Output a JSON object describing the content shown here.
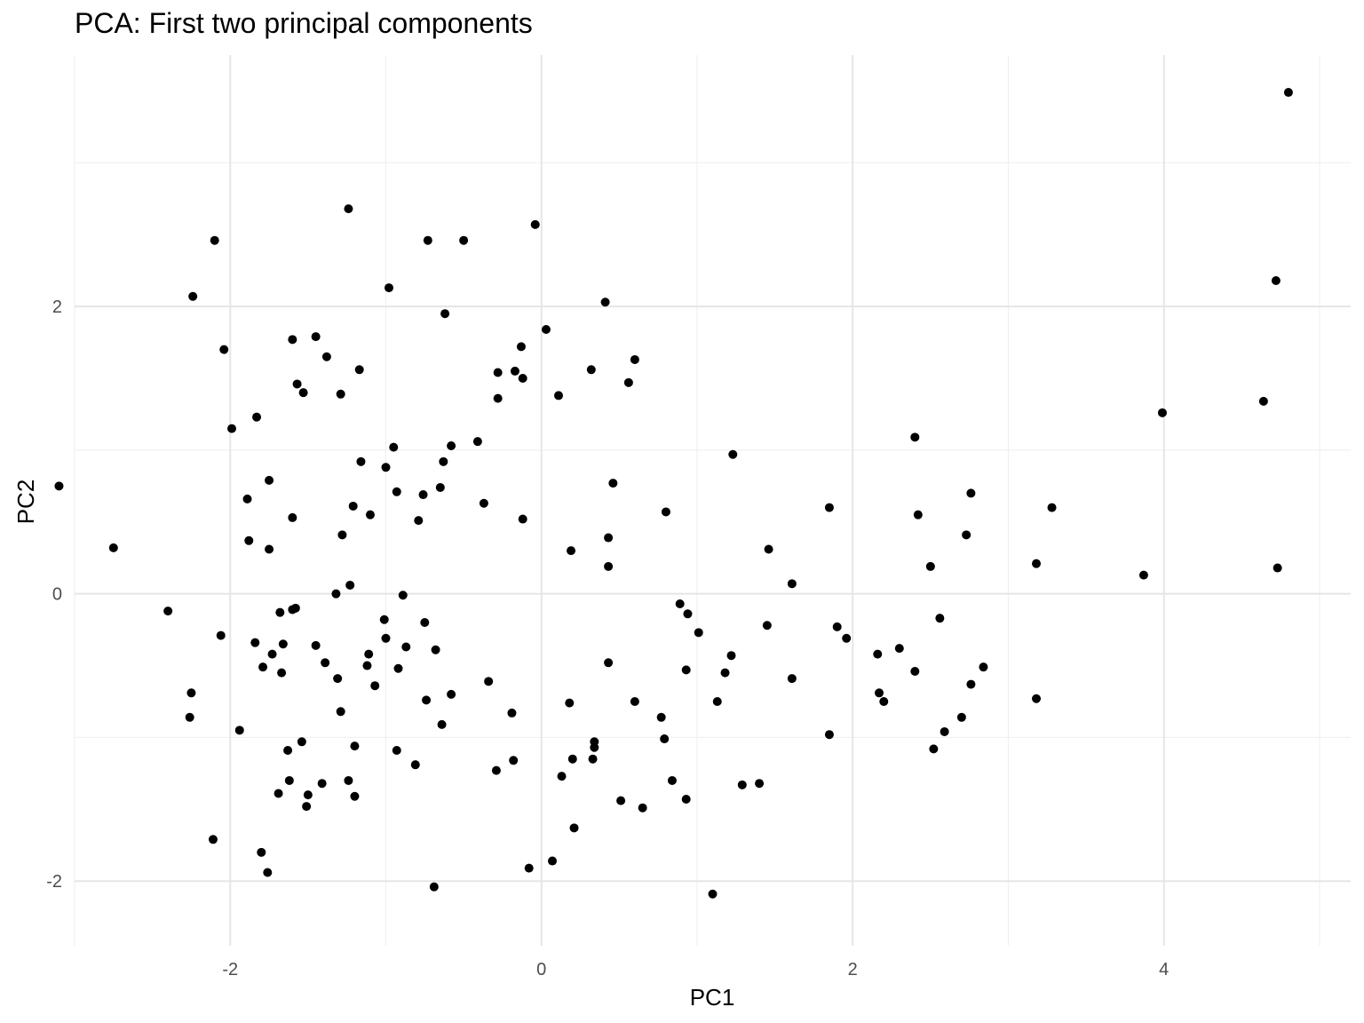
{
  "chart_data": {
    "type": "scatter",
    "title": "PCA: First two principal components",
    "xlabel": "PC1",
    "ylabel": "PC2",
    "xlim": [
      -3.0,
      5.2
    ],
    "ylim": [
      -2.45,
      3.75
    ],
    "x_ticks": [
      -2,
      0,
      2,
      4
    ],
    "y_ticks": [
      -2,
      0,
      2
    ],
    "x_tick_labels": [
      "-2",
      "0",
      "2",
      "4"
    ],
    "y_tick_labels": [
      "-2",
      "0",
      "2"
    ],
    "grid": true,
    "point_color": "#000000",
    "points": [
      [
        4.8,
        3.49
      ],
      [
        4.72,
        2.18
      ],
      [
        4.64,
        1.34
      ],
      [
        4.73,
        0.18
      ],
      [
        3.99,
        1.26
      ],
      [
        3.87,
        0.13
      ],
      [
        3.28,
        0.6
      ],
      [
        3.18,
        0.21
      ],
      [
        3.18,
        -0.73
      ],
      [
        2.84,
        -0.51
      ],
      [
        2.76,
        0.7
      ],
      [
        2.76,
        -0.63
      ],
      [
        2.73,
        0.41
      ],
      [
        2.7,
        -0.86
      ],
      [
        2.59,
        -0.96
      ],
      [
        2.56,
        -0.17
      ],
      [
        2.52,
        -1.08
      ],
      [
        2.5,
        0.19
      ],
      [
        2.42,
        0.55
      ],
      [
        2.4,
        1.09
      ],
      [
        2.4,
        -0.54
      ],
      [
        2.3,
        -0.38
      ],
      [
        2.2,
        -0.75
      ],
      [
        2.17,
        -0.69
      ],
      [
        2.16,
        -0.42
      ],
      [
        1.96,
        -0.31
      ],
      [
        1.9,
        -0.23
      ],
      [
        1.85,
        0.6
      ],
      [
        1.85,
        -0.98
      ],
      [
        1.61,
        0.07
      ],
      [
        1.61,
        -0.59
      ],
      [
        1.46,
        0.31
      ],
      [
        1.45,
        -0.22
      ],
      [
        1.4,
        -1.32
      ],
      [
        1.29,
        -1.33
      ],
      [
        1.23,
        0.97
      ],
      [
        1.22,
        -0.43
      ],
      [
        1.18,
        -0.55
      ],
      [
        1.13,
        -0.75
      ],
      [
        1.1,
        -2.09
      ],
      [
        1.01,
        -0.27
      ],
      [
        0.94,
        -0.14
      ],
      [
        0.93,
        -0.53
      ],
      [
        0.93,
        -1.43
      ],
      [
        0.89,
        -0.07
      ],
      [
        0.84,
        -1.3
      ],
      [
        0.8,
        0.57
      ],
      [
        0.79,
        -1.01
      ],
      [
        0.77,
        -0.86
      ],
      [
        0.65,
        -1.49
      ],
      [
        0.6,
        -0.75
      ],
      [
        0.6,
        1.63
      ],
      [
        0.56,
        1.47
      ],
      [
        0.51,
        -1.44
      ],
      [
        0.46,
        0.77
      ],
      [
        0.43,
        -0.48
      ],
      [
        0.43,
        0.19
      ],
      [
        0.43,
        0.39
      ],
      [
        0.41,
        2.03
      ],
      [
        0.34,
        -1.07
      ],
      [
        0.34,
        -1.03
      ],
      [
        0.33,
        -1.15
      ],
      [
        0.32,
        1.56
      ],
      [
        0.21,
        -1.63
      ],
      [
        0.2,
        -1.15
      ],
      [
        0.19,
        0.3
      ],
      [
        0.18,
        -0.76
      ],
      [
        0.13,
        -1.27
      ],
      [
        0.11,
        1.38
      ],
      [
        0.07,
        -1.86
      ],
      [
        0.03,
        1.84
      ],
      [
        -0.04,
        2.57
      ],
      [
        -0.08,
        -1.91
      ],
      [
        -0.12,
        0.52
      ],
      [
        -0.12,
        1.5
      ],
      [
        -0.13,
        1.72
      ],
      [
        -0.17,
        1.55
      ],
      [
        -0.18,
        -1.16
      ],
      [
        -0.19,
        -0.83
      ],
      [
        -0.28,
        1.36
      ],
      [
        -0.28,
        1.54
      ],
      [
        -0.29,
        -1.23
      ],
      [
        -0.34,
        -0.61
      ],
      [
        -0.37,
        0.63
      ],
      [
        -0.41,
        1.06
      ],
      [
        -0.5,
        2.46
      ],
      [
        -0.58,
        1.03
      ],
      [
        -0.58,
        -0.7
      ],
      [
        -0.62,
        1.95
      ],
      [
        -0.63,
        0.92
      ],
      [
        -0.64,
        -0.91
      ],
      [
        -0.65,
        0.74
      ],
      [
        -0.68,
        -0.39
      ],
      [
        -0.69,
        -2.04
      ],
      [
        -0.73,
        2.46
      ],
      [
        -0.74,
        -0.74
      ],
      [
        -0.75,
        -0.2
      ],
      [
        -0.76,
        0.69
      ],
      [
        -0.79,
        0.51
      ],
      [
        -0.81,
        -1.19
      ],
      [
        -0.87,
        -0.37
      ],
      [
        -0.89,
        -0.01
      ],
      [
        -0.92,
        -0.52
      ],
      [
        -0.93,
        -1.09
      ],
      [
        -0.93,
        0.71
      ],
      [
        -0.95,
        1.02
      ],
      [
        -0.98,
        2.13
      ],
      [
        -1.0,
        0.88
      ],
      [
        -1.0,
        -0.31
      ],
      [
        -1.01,
        -0.18
      ],
      [
        -1.07,
        -0.64
      ],
      [
        -1.1,
        0.55
      ],
      [
        -1.11,
        -0.42
      ],
      [
        -1.12,
        -0.5
      ],
      [
        -1.16,
        0.92
      ],
      [
        -1.17,
        1.56
      ],
      [
        -1.2,
        -1.06
      ],
      [
        -1.2,
        -1.41
      ],
      [
        -1.21,
        0.61
      ],
      [
        -1.23,
        0.06
      ],
      [
        -1.24,
        2.68
      ],
      [
        -1.24,
        -1.3
      ],
      [
        -1.28,
        0.41
      ],
      [
        -1.29,
        1.39
      ],
      [
        -1.29,
        -0.82
      ],
      [
        -1.31,
        -0.59
      ],
      [
        -1.32,
        0.0
      ],
      [
        -1.38,
        1.65
      ],
      [
        -1.39,
        -0.48
      ],
      [
        -1.41,
        -1.32
      ],
      [
        -1.45,
        -0.36
      ],
      [
        -1.45,
        1.79
      ],
      [
        -1.5,
        -1.4
      ],
      [
        -1.51,
        -1.48
      ],
      [
        -1.53,
        1.4
      ],
      [
        -1.54,
        -1.03
      ],
      [
        -1.57,
        1.46
      ],
      [
        -1.58,
        -0.1
      ],
      [
        -1.6,
        0.53
      ],
      [
        -1.6,
        1.77
      ],
      [
        -1.6,
        -0.11
      ],
      [
        -1.62,
        -1.3
      ],
      [
        -1.63,
        -1.09
      ],
      [
        -1.66,
        -0.35
      ],
      [
        -1.67,
        -0.55
      ],
      [
        -1.68,
        -0.13
      ],
      [
        -1.69,
        -1.39
      ],
      [
        -1.73,
        -0.42
      ],
      [
        -1.75,
        0.31
      ],
      [
        -1.75,
        0.79
      ],
      [
        -1.76,
        -1.94
      ],
      [
        -1.79,
        -0.51
      ],
      [
        -1.8,
        -1.8
      ],
      [
        -1.83,
        1.23
      ],
      [
        -1.84,
        -0.34
      ],
      [
        -1.88,
        0.37
      ],
      [
        -1.89,
        0.66
      ],
      [
        -1.94,
        -0.95
      ],
      [
        -1.99,
        1.15
      ],
      [
        -2.04,
        1.7
      ],
      [
        -2.06,
        -0.29
      ],
      [
        -2.1,
        2.46
      ],
      [
        -2.11,
        -1.71
      ],
      [
        -2.24,
        2.07
      ],
      [
        -2.25,
        -0.69
      ],
      [
        -2.26,
        -0.86
      ],
      [
        -2.4,
        -0.12
      ],
      [
        -2.75,
        0.32
      ],
      [
        -3.1,
        0.75
      ]
    ]
  }
}
